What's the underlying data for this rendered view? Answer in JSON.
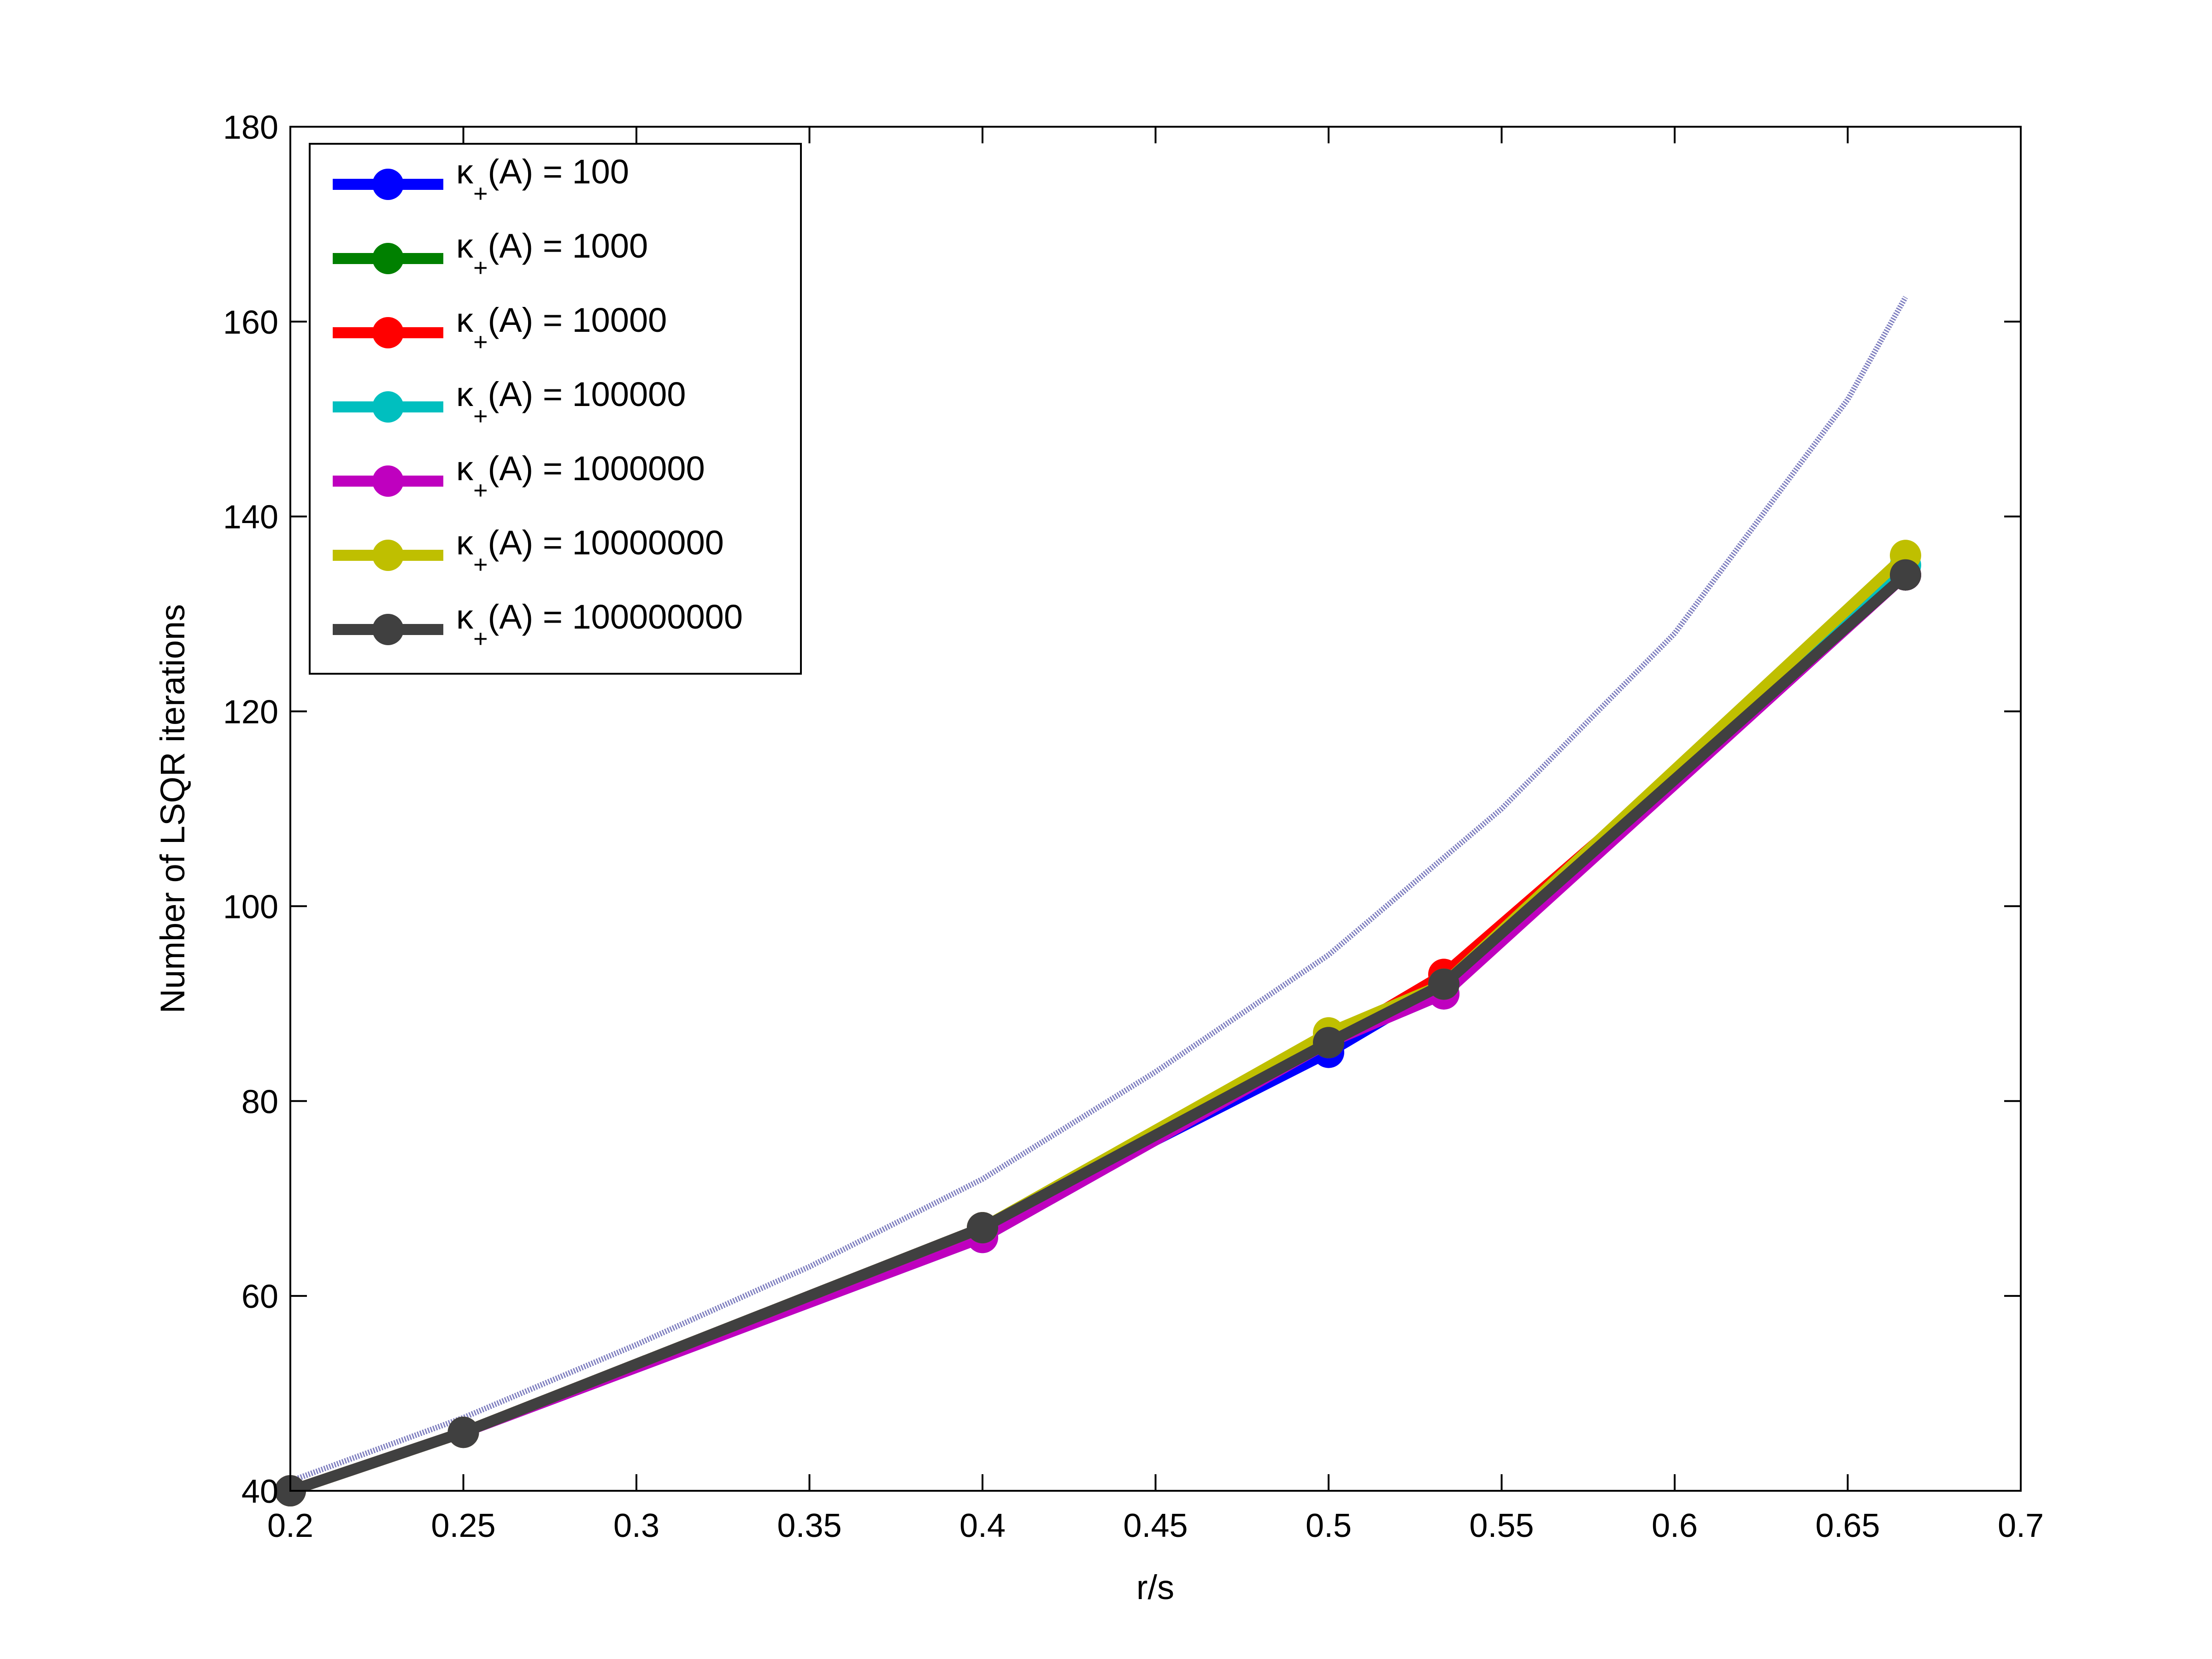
{
  "chart_data": {
    "type": "line",
    "xlabel": "r/s",
    "ylabel": "Number of LSQR iterations",
    "xlim": [
      0.2,
      0.7
    ],
    "ylim": [
      40,
      180
    ],
    "xticks": [
      "0.2",
      "0.25",
      "0.3",
      "0.35",
      "0.4",
      "0.45",
      "0.5",
      "0.55",
      "0.6",
      "0.65",
      "0.7"
    ],
    "yticks": [
      "40",
      "60",
      "80",
      "100",
      "120",
      "140",
      "160",
      "180"
    ],
    "grid": false,
    "legend_position": "top-left",
    "x": [
      0.2,
      0.25,
      0.4,
      0.5,
      0.5333,
      0.6667
    ],
    "series": [
      {
        "name": "κ+(A) = 100",
        "label_prefix": "κ",
        "label_sub": "+",
        "label_suffix": "(A) = 100",
        "color": "#0000ff",
        "values": [
          40,
          46,
          67,
          85,
          92,
          134
        ]
      },
      {
        "name": "κ+(A) = 1000",
        "label_prefix": "κ",
        "label_sub": "+",
        "label_suffix": "(A) = 1000",
        "color": "#008000",
        "values": [
          40,
          46,
          67,
          86,
          92,
          134
        ]
      },
      {
        "name": "κ+(A) = 10000",
        "label_prefix": "κ",
        "label_sub": "+",
        "label_suffix": "(A) = 10000",
        "color": "#ff0000",
        "values": [
          40,
          46,
          67,
          86,
          93,
          134
        ]
      },
      {
        "name": "κ+(A) = 100000",
        "label_prefix": "κ",
        "label_sub": "+",
        "label_suffix": "(A) = 100000",
        "color": "#00bfbf",
        "values": [
          40,
          46,
          66,
          86,
          91,
          135
        ]
      },
      {
        "name": "κ+(A) = 1000000",
        "label_prefix": "κ",
        "label_sub": "+",
        "label_suffix": "(A) = 1000000",
        "color": "#bf00bf",
        "values": [
          40,
          46,
          66,
          86,
          91,
          134
        ]
      },
      {
        "name": "κ+(A) = 10000000",
        "label_prefix": "κ",
        "label_sub": "+",
        "label_suffix": "(A) = 10000000",
        "color": "#bfbf00",
        "values": [
          40,
          46,
          67,
          87,
          92,
          136
        ]
      },
      {
        "name": "κ+(A) = 100000000",
        "label_prefix": "κ",
        "label_sub": "+",
        "label_suffix": "(A) = 100000000",
        "color": "#404040",
        "values": [
          40,
          46,
          67,
          86,
          92,
          134
        ]
      }
    ],
    "reference_curve": {
      "color": "#8080c0",
      "x": [
        0.2,
        0.25,
        0.3,
        0.35,
        0.4,
        0.45,
        0.5,
        0.55,
        0.6,
        0.65,
        0.6667
      ],
      "values": [
        41,
        47.5,
        55,
        63,
        72,
        83,
        95,
        110,
        128,
        152,
        162.5
      ]
    }
  }
}
